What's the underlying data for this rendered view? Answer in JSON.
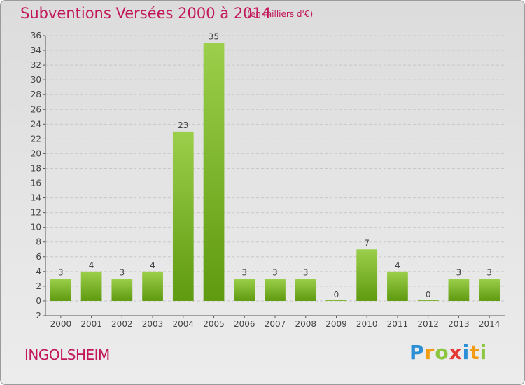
{
  "title": "Subventions Versées 2000 à 2014",
  "unit_label": "(en milliers d'€)",
  "commune": "INGOLSHEIM",
  "logo": {
    "text": "Proxiti",
    "letters": [
      "P",
      "r",
      "o",
      "x",
      "i",
      "t",
      "i"
    ]
  },
  "colors": {
    "title": "#c2185b",
    "bar_top": "#9ccf4b",
    "bar_bottom": "#5f9a10",
    "grid": "#c8c8c8"
  },
  "chart_data": {
    "type": "bar",
    "title": "Subventions Versées 2000 à 2014",
    "categories": [
      "2000",
      "2001",
      "2002",
      "2003",
      "2004",
      "2005",
      "2006",
      "2007",
      "2008",
      "2009",
      "2010",
      "2011",
      "2012",
      "2013",
      "2014"
    ],
    "values": [
      3,
      4,
      3,
      4,
      23,
      35,
      3,
      3,
      3,
      0,
      7,
      4,
      0,
      3,
      3
    ],
    "ylim": [
      -2,
      36
    ],
    "yticks": [
      -2,
      0,
      2,
      4,
      6,
      8,
      10,
      12,
      14,
      16,
      18,
      20,
      22,
      24,
      26,
      28,
      30,
      32,
      34,
      36
    ],
    "grid": true
  }
}
